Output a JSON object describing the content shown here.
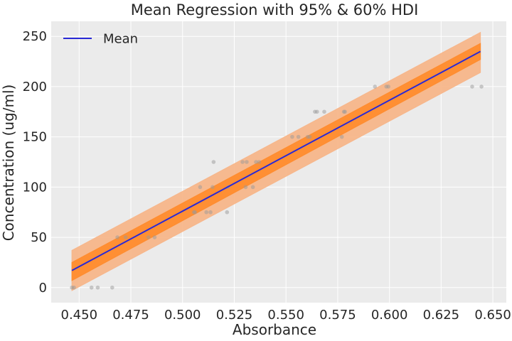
{
  "chart_data": {
    "type": "line",
    "title": "Mean Regression with 95% & 60% HDI",
    "xlabel": "Absorbance",
    "ylabel": "Concentration (ug/ml)",
    "xlim": [
      0.4365,
      0.6565
    ],
    "ylim": [
      -15,
      265
    ],
    "x_ticks": [
      0.45,
      0.475,
      0.5,
      0.525,
      0.55,
      0.575,
      0.6,
      0.625,
      0.65
    ],
    "x_tick_labels": [
      "0.450",
      "0.475",
      "0.500",
      "0.525",
      "0.550",
      "0.575",
      "0.600",
      "0.625",
      "0.650"
    ],
    "y_ticks": [
      0,
      50,
      100,
      150,
      200,
      250
    ],
    "y_tick_labels": [
      "0",
      "50",
      "100",
      "150",
      "200",
      "250"
    ],
    "grid": true,
    "legend_position": "top-left",
    "background_color": "#ebebeb",
    "series": [
      {
        "name": "Mean",
        "kind": "line",
        "color": "#2a2ad6",
        "x": [
          0.4465,
          0.644
        ],
        "y": [
          17,
          235
        ]
      },
      {
        "kind": "band",
        "label": "95% HDI",
        "color": "#f7b68a",
        "x": [
          0.4465,
          0.644
        ],
        "lower": [
          -3,
          214
        ],
        "upper": [
          37,
          254
        ]
      },
      {
        "kind": "band",
        "label": "60% HDI",
        "color": "#ff8c2e",
        "x": [
          0.4465,
          0.644
        ],
        "lower": [
          7,
          227
        ],
        "upper": [
          25,
          243
        ]
      },
      {
        "kind": "scatter",
        "label": "observations",
        "color": "#9a9a9a",
        "x": [
          0.4465,
          0.4475,
          0.456,
          0.459,
          0.466,
          0.4685,
          0.4725,
          0.4835,
          0.4865,
          0.5055,
          0.506,
          0.5085,
          0.5115,
          0.5135,
          0.5145,
          0.515,
          0.5215,
          0.522,
          0.529,
          0.5305,
          0.531,
          0.534,
          0.5355,
          0.537,
          0.553,
          0.556,
          0.5605,
          0.5615,
          0.564,
          0.565,
          0.5685,
          0.577,
          0.578,
          0.5785,
          0.593,
          0.5985,
          0.5995,
          0.64,
          0.6445
        ],
        "y": [
          0,
          0,
          0,
          0,
          0,
          50,
          50,
          50,
          50,
          75,
          75,
          100,
          75,
          75,
          100,
          125,
          75,
          100,
          125,
          100,
          125,
          100,
          125,
          125,
          150,
          150,
          150,
          150,
          175,
          175,
          175,
          150,
          175,
          175,
          200,
          200,
          200,
          200,
          200
        ]
      }
    ]
  }
}
